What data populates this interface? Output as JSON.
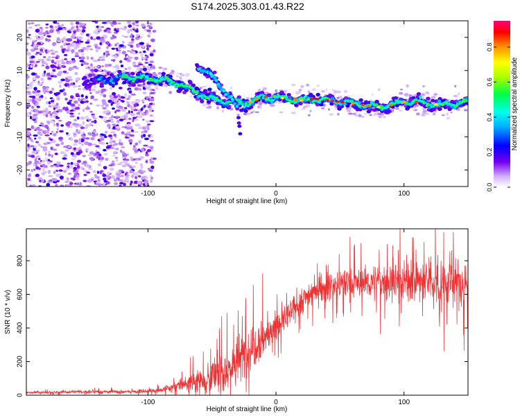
{
  "title": "S174.2025.303.01.43.R22",
  "chart_data": [
    {
      "type": "heatmap",
      "description": "Spectrogram: normalized spectral amplitude vs height and frequency",
      "xlabel": "Height of straight line (km)",
      "ylabel": "Frequency (Hz)",
      "xlim": [
        -195,
        150
      ],
      "ylim": [
        -25,
        25
      ],
      "xticks": [
        -100,
        0,
        100
      ],
      "yticks": [
        -20,
        -10,
        0,
        10,
        20
      ],
      "ridge": {
        "name": "dominant frequency track",
        "x": [
          -140,
          -120,
          -105,
          -95,
          -85,
          -75,
          -65,
          -55,
          -45,
          -35,
          -25,
          -20,
          -10,
          0,
          10,
          20,
          30,
          40,
          50,
          60,
          70,
          80,
          90,
          100,
          110,
          120,
          130,
          140,
          150
        ],
        "y": [
          7,
          8,
          8,
          7.5,
          7,
          6,
          4,
          2,
          1,
          0.5,
          0,
          0.5,
          2,
          2,
          1.5,
          1,
          1.5,
          1,
          0.5,
          0,
          -0.5,
          -1,
          -0.5,
          0.5,
          0.5,
          0,
          -0.5,
          0,
          0.5
        ]
      },
      "branch": {
        "name": "descending branch",
        "x": [
          -60,
          -55,
          -50,
          -45,
          -40,
          -35,
          -30,
          -28
        ],
        "y": [
          11,
          10,
          8,
          6,
          4,
          2,
          -2,
          -10
        ]
      },
      "colorbar": {
        "label": "Normalized spectral amplitude",
        "range": [
          0.0,
          0.95
        ],
        "ticks": [
          "0.0",
          "0.2",
          "0.4",
          "0.6",
          "0.8"
        ]
      }
    },
    {
      "type": "line",
      "xlabel": "Height of straight line (km)",
      "ylabel": "SNR (10 * v/v)",
      "xlim": [
        -195,
        150
      ],
      "ylim": [
        0,
        990
      ],
      "xticks": [
        -100,
        0,
        100
      ],
      "yticks": [
        0,
        200,
        400,
        600,
        800
      ],
      "color": "#ee3333",
      "envelope": {
        "x": [
          -195,
          -150,
          -120,
          -100,
          -90,
          -80,
          -70,
          -60,
          -50,
          -40,
          -30,
          -20,
          -15,
          -10,
          0,
          10,
          20,
          30,
          50,
          70,
          90,
          110,
          130,
          150
        ],
        "mean": [
          15,
          20,
          20,
          25,
          30,
          50,
          70,
          90,
          110,
          140,
          200,
          280,
          320,
          340,
          400,
          480,
          560,
          630,
          660,
          670,
          680,
          680,
          670,
          660
        ],
        "noise": [
          10,
          15,
          15,
          15,
          20,
          40,
          70,
          100,
          140,
          170,
          200,
          220,
          200,
          180,
          130,
          110,
          110,
          110,
          120,
          130,
          150,
          180,
          200,
          200
        ]
      }
    }
  ]
}
